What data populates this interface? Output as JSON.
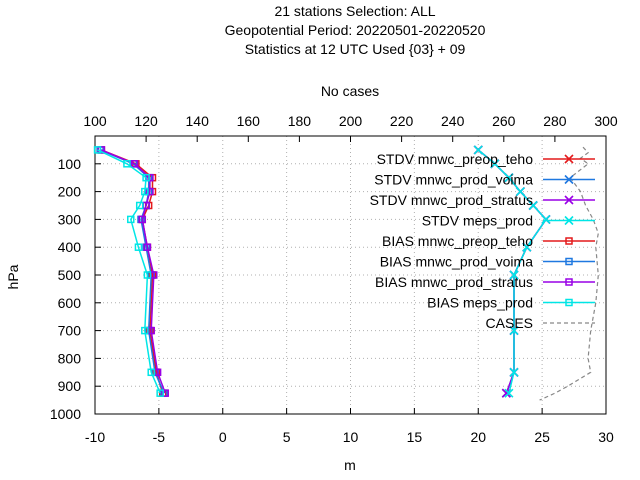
{
  "chart_data": {
    "type": "line",
    "title_lines": [
      "21 stations Selection: ALL",
      "Geopotential  Period: 20220501-20220520",
      "Statistics at 12 UTC  Used {03} + 09"
    ],
    "xlabel": "m",
    "ylabel": "hPa",
    "x2label": "No cases",
    "xlim": [
      -10,
      30
    ],
    "ylim": [
      1000,
      0
    ],
    "x2lim": [
      100,
      300
    ],
    "x_ticks": [
      "-10",
      "-5",
      "0",
      "5",
      "10",
      "15",
      "20",
      "25",
      "30"
    ],
    "y_ticks": [
      "100",
      "200",
      "300",
      "400",
      "500",
      "600",
      "700",
      "800",
      "900",
      "1000"
    ],
    "x2_ticks": [
      "100",
      "120",
      "140",
      "160",
      "180",
      "200",
      "220",
      "240",
      "260",
      "280",
      "300"
    ],
    "grid": true,
    "legend_position": "top-right",
    "levels": [
      50,
      100,
      150,
      200,
      250,
      300,
      400,
      500,
      700,
      850,
      925
    ],
    "series": [
      {
        "name": "STDV mnwc_preop_teho",
        "color": "#e41a1c",
        "marker": "x",
        "values": [
          20.0,
          21.3,
          22.4,
          23.3,
          24.3,
          25.3,
          23.8,
          22.8,
          22.8,
          22.8,
          22.2
        ]
      },
      {
        "name": "STDV mnwc_prod_voima",
        "color": "#1f78e0",
        "marker": "x",
        "values": [
          20.0,
          21.3,
          22.4,
          23.3,
          24.3,
          25.3,
          23.8,
          22.8,
          22.8,
          22.8,
          22.2
        ]
      },
      {
        "name": "STDV mnwc_prod_stratus",
        "color": "#9900e6",
        "marker": "x",
        "values": [
          20.0,
          21.3,
          22.4,
          23.3,
          24.3,
          25.3,
          23.8,
          22.8,
          22.8,
          22.8,
          22.2
        ]
      },
      {
        "name": "STDV meps_prod",
        "color": "#00e6e6",
        "marker": "x",
        "values": [
          20.0,
          21.3,
          22.4,
          23.3,
          24.3,
          25.3,
          23.8,
          22.8,
          22.8,
          22.8,
          22.4
        ]
      },
      {
        "name": "BIAS mnwc_preop_teho",
        "color": "#e41a1c",
        "marker": "square",
        "values": [
          -9.5,
          -6.8,
          -5.5,
          -5.5,
          -5.8,
          -6.3,
          -5.9,
          -5.5,
          -5.7,
          -5.2,
          -4.7
        ]
      },
      {
        "name": "BIAS mnwc_prod_voima",
        "color": "#1f78e0",
        "marker": "square",
        "values": [
          -9.6,
          -7.0,
          -5.8,
          -5.8,
          -6.0,
          -6.4,
          -6.0,
          -5.6,
          -5.8,
          -5.3,
          -4.6
        ]
      },
      {
        "name": "BIAS mnwc_prod_stratus",
        "color": "#9900e6",
        "marker": "square",
        "values": [
          -9.5,
          -6.9,
          -5.7,
          -5.7,
          -6.0,
          -6.3,
          -5.9,
          -5.4,
          -5.6,
          -5.1,
          -4.5
        ]
      },
      {
        "name": "BIAS meps_prod",
        "color": "#00e6e6",
        "marker": "square",
        "values": [
          -9.8,
          -7.5,
          -6.0,
          -6.1,
          -6.5,
          -7.2,
          -6.6,
          -5.9,
          -6.1,
          -5.6,
          -4.9
        ]
      }
    ],
    "cases": {
      "name": "CASES",
      "color": "#888888",
      "levels": [
        40,
        60,
        80,
        100,
        150,
        200,
        250,
        300,
        350,
        400,
        500,
        600,
        700,
        800,
        850,
        900,
        925,
        950
      ],
      "values": [
        291,
        293,
        290,
        293,
        286,
        290,
        292,
        295,
        297,
        296,
        297,
        296,
        294,
        293,
        294,
        285,
        280,
        274
      ]
    }
  }
}
